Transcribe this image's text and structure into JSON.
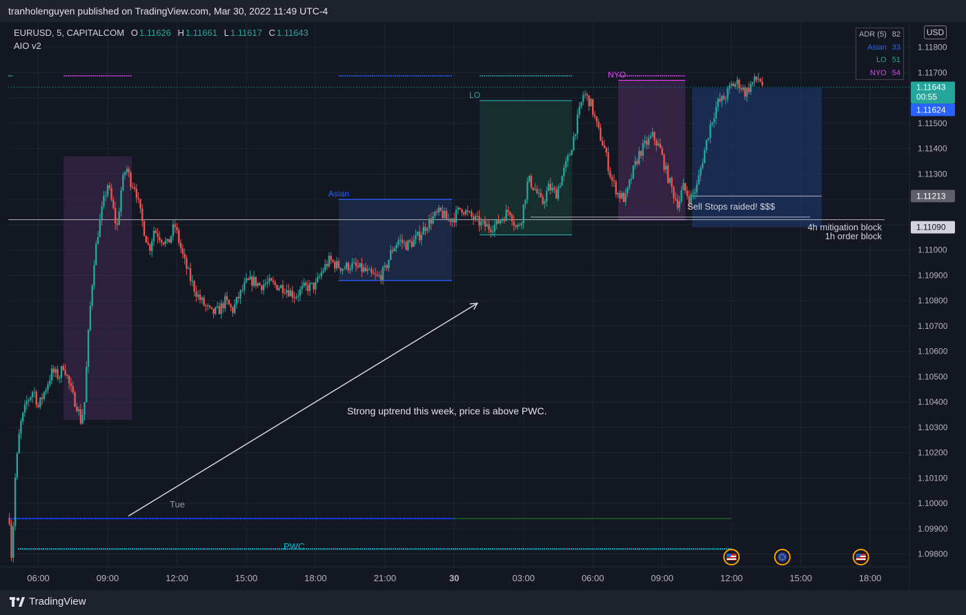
{
  "header": {
    "publisher_text": "tranholenguyen published on TradingView.com, Mar 30, 2022 11:49 UTC-4"
  },
  "footer": {
    "brand": "TradingView"
  },
  "legend": {
    "symbol": "EURUSD, 5, CAPITALCOM",
    "o_label": "O",
    "o": "1.11626",
    "h_label": "H",
    "h": "1.11661",
    "l_label": "L",
    "l": "1.11617",
    "c_label": "C",
    "c": "1.11643",
    "indicator": "AIO v2"
  },
  "adr_table": {
    "rows": [
      {
        "label": "ADR (5)",
        "value": "82",
        "color": "#b2b5be"
      },
      {
        "label": "Asian",
        "value": "33",
        "color": "#2962ff"
      },
      {
        "label": "LO",
        "value": "51",
        "color": "#26a69a"
      },
      {
        "label": "NYO",
        "value": "54",
        "color": "#e040fb"
      }
    ]
  },
  "currency": "USD",
  "colors": {
    "up": "#26a69a",
    "down": "#ef5350",
    "background": "#131722",
    "grid": "#1f2430"
  },
  "chart_data": {
    "type": "candlestick",
    "symbol": "EURUSD",
    "timeframe": "5",
    "ylim": [
      1.0975,
      1.119
    ],
    "y_ticks": [
      1.118,
      1.117,
      1.116,
      1.115,
      1.114,
      1.113,
      1.112,
      1.111,
      1.11,
      1.109,
      1.108,
      1.107,
      1.106,
      1.105,
      1.104,
      1.103,
      1.102,
      1.101,
      1.1,
      1.099,
      1.098
    ],
    "y_tick_labels": [
      "1.11800",
      "1.11700",
      "1.11600",
      "1.11500",
      "1.11400",
      "1.11300",
      "1.11200",
      "1.11100",
      "1.11000",
      "1.10900",
      "1.10800",
      "1.10700",
      "1.10600",
      "1.10500",
      "1.10400",
      "1.10300",
      "1.10200",
      "1.10100",
      "1.10000",
      "1.09900",
      "1.09800"
    ],
    "x_ticks": [
      {
        "h": 6,
        "label": "06:00"
      },
      {
        "h": 9,
        "label": "09:00"
      },
      {
        "h": 12,
        "label": "12:00"
      },
      {
        "h": 15,
        "label": "15:00"
      },
      {
        "h": 18,
        "label": "18:00"
      },
      {
        "h": 21,
        "label": "21:00"
      },
      {
        "h": 24,
        "label": "30"
      },
      {
        "h": 27,
        "label": "03:00"
      },
      {
        "h": 30,
        "label": "06:00"
      },
      {
        "h": 33,
        "label": "09:00"
      },
      {
        "h": 36,
        "label": "12:00"
      },
      {
        "h": 39,
        "label": "15:00"
      },
      {
        "h": 42,
        "label": "18:00"
      }
    ],
    "x_range_hours": [
      4.7,
      43.7
    ],
    "price_path": [
      [
        4.75,
        1.0994
      ],
      [
        4.85,
        1.0977
      ],
      [
        5.0,
        1.101
      ],
      [
        5.2,
        1.103
      ],
      [
        5.5,
        1.104
      ],
      [
        5.8,
        1.1045
      ],
      [
        6.0,
        1.1038
      ],
      [
        6.3,
        1.1045
      ],
      [
        6.6,
        1.1052
      ],
      [
        6.9,
        1.105
      ],
      [
        7.1,
        1.1055
      ],
      [
        7.3,
        1.1048
      ],
      [
        7.5,
        1.1042
      ],
      [
        7.7,
        1.1038
      ],
      [
        7.85,
        1.1032
      ],
      [
        8.0,
        1.104
      ],
      [
        8.2,
        1.1072
      ],
      [
        8.4,
        1.1095
      ],
      [
        8.6,
        1.1108
      ],
      [
        8.8,
        1.1118
      ],
      [
        9.0,
        1.1126
      ],
      [
        9.2,
        1.1118
      ],
      [
        9.4,
        1.1108
      ],
      [
        9.6,
        1.1125
      ],
      [
        9.8,
        1.1133
      ],
      [
        10.0,
        1.1127
      ],
      [
        10.2,
        1.1125
      ],
      [
        10.4,
        1.1115
      ],
      [
        10.6,
        1.1107
      ],
      [
        10.8,
        1.11
      ],
      [
        11.0,
        1.1108
      ],
      [
        11.3,
        1.1105
      ],
      [
        11.6,
        1.1102
      ],
      [
        11.9,
        1.111
      ],
      [
        12.1,
        1.1103
      ],
      [
        12.3,
        1.1096
      ],
      [
        12.6,
        1.1088
      ],
      [
        12.9,
        1.1082
      ],
      [
        13.2,
        1.1078
      ],
      [
        13.5,
        1.1075
      ],
      [
        13.8,
        1.1076
      ],
      [
        14.1,
        1.108
      ],
      [
        14.4,
        1.1076
      ],
      [
        14.7,
        1.1082
      ],
      [
        15.0,
        1.1087
      ],
      [
        15.3,
        1.1088
      ],
      [
        15.6,
        1.1086
      ],
      [
        15.9,
        1.1087
      ],
      [
        16.3,
        1.1086
      ],
      [
        16.7,
        1.1085
      ],
      [
        17.1,
        1.1082
      ],
      [
        17.5,
        1.1085
      ],
      [
        18.0,
        1.1086
      ],
      [
        18.3,
        1.1092
      ],
      [
        18.6,
        1.1096
      ],
      [
        18.9,
        1.1094
      ],
      [
        19.2,
        1.1093
      ],
      [
        19.5,
        1.1094
      ],
      [
        19.8,
        1.1093
      ],
      [
        20.1,
        1.1092
      ],
      [
        20.4,
        1.109
      ],
      [
        20.7,
        1.1089
      ],
      [
        21.0,
        1.1092
      ],
      [
        21.3,
        1.11
      ],
      [
        21.6,
        1.1104
      ],
      [
        21.9,
        1.1102
      ],
      [
        22.2,
        1.1103
      ],
      [
        22.5,
        1.1106
      ],
      [
        22.8,
        1.111
      ],
      [
        23.1,
        1.1113
      ],
      [
        23.4,
        1.1115
      ],
      [
        23.7,
        1.1112
      ],
      [
        24.0,
        1.1113
      ],
      [
        24.3,
        1.1117
      ],
      [
        24.6,
        1.1114
      ],
      [
        24.9,
        1.1112
      ],
      [
        25.2,
        1.111
      ],
      [
        25.5,
        1.1109
      ],
      [
        25.8,
        1.111
      ],
      [
        26.1,
        1.1113
      ],
      [
        26.4,
        1.1116
      ],
      [
        26.7,
        1.1108
      ],
      [
        26.9,
        1.1112
      ],
      [
        27.2,
        1.1128
      ],
      [
        27.5,
        1.1124
      ],
      [
        27.8,
        1.1118
      ],
      [
        28.1,
        1.1125
      ],
      [
        28.4,
        1.1122
      ],
      [
        28.7,
        1.113
      ],
      [
        29.0,
        1.1138
      ],
      [
        29.3,
        1.115
      ],
      [
        29.6,
        1.1162
      ],
      [
        29.9,
        1.1158
      ],
      [
        30.2,
        1.1148
      ],
      [
        30.5,
        1.114
      ],
      [
        30.8,
        1.1128
      ],
      [
        31.1,
        1.1122
      ],
      [
        31.4,
        1.112
      ],
      [
        31.7,
        1.113
      ],
      [
        32.0,
        1.1138
      ],
      [
        32.3,
        1.1142
      ],
      [
        32.6,
        1.1145
      ],
      [
        32.9,
        1.114
      ],
      [
        33.2,
        1.113
      ],
      [
        33.5,
        1.1122
      ],
      [
        33.7,
        1.1118
      ],
      [
        33.9,
        1.1125
      ],
      [
        34.2,
        1.112
      ],
      [
        34.5,
        1.1125
      ],
      [
        34.8,
        1.1138
      ],
      [
        35.1,
        1.115
      ],
      [
        35.4,
        1.1158
      ],
      [
        35.7,
        1.116
      ],
      [
        36.0,
        1.1165
      ],
      [
        36.3,
        1.1166
      ],
      [
        36.6,
        1.1162
      ],
      [
        36.9,
        1.1166
      ],
      [
        37.2,
        1.1168
      ],
      [
        37.4,
        1.1164
      ]
    ],
    "sessions": [
      {
        "name": "Asian",
        "label": "Asian",
        "color": "#2962ff",
        "x0": 19.0,
        "x1": 23.9,
        "y0": 1.1088,
        "y1": 1.112
      },
      {
        "name": "LO",
        "label": "LO",
        "color": "#26a69a",
        "x0": 25.1,
        "x1": 29.1,
        "y0": 1.1106,
        "y1": 1.1159
      },
      {
        "name": "NYO",
        "label": "NYO",
        "color": "#e040fb",
        "x0": 31.1,
        "x1": 34.0,
        "y0": 1.1112,
        "y1": 1.1167
      }
    ],
    "killzone_box": {
      "x0": 7.1,
      "x1": 10.05,
      "y0": 1.1033,
      "y1": 1.1137,
      "color": "#4a2e5e"
    },
    "order_block": {
      "x0": 34.3,
      "x1": 39.9,
      "y0": 1.1109,
      "y1": 1.1164,
      "color": "#1e3566"
    },
    "lines": {
      "last_price": 1.11643,
      "mitigation_level": 1.11213,
      "ob_level": 1.1109,
      "sell_stop_level": 1.1113,
      "tue_open": 1.0994,
      "pwc": 1.0982
    },
    "price_labels": {
      "last_price": "1.11643",
      "countdown": "00:55",
      "bid": "1.11624",
      "mitigation": "1.11213",
      "ob": "1.11090"
    },
    "annotations": {
      "main_text": "Strong uptrend this week, price is above PWC.",
      "tue": "Tue",
      "pwc": "PWC",
      "sell_stops": "Sell Stops raided! $$$",
      "mitigation": "4h mitigation block",
      "order_block": "1h order block"
    },
    "arrow": {
      "from": [
        9.9,
        1.0995
      ],
      "to": [
        25.0,
        1.1079
      ]
    },
    "events": [
      {
        "h": 36.0,
        "type": "us"
      },
      {
        "h": 38.2,
        "type": "eu"
      },
      {
        "h": 41.6,
        "type": "us"
      }
    ]
  }
}
